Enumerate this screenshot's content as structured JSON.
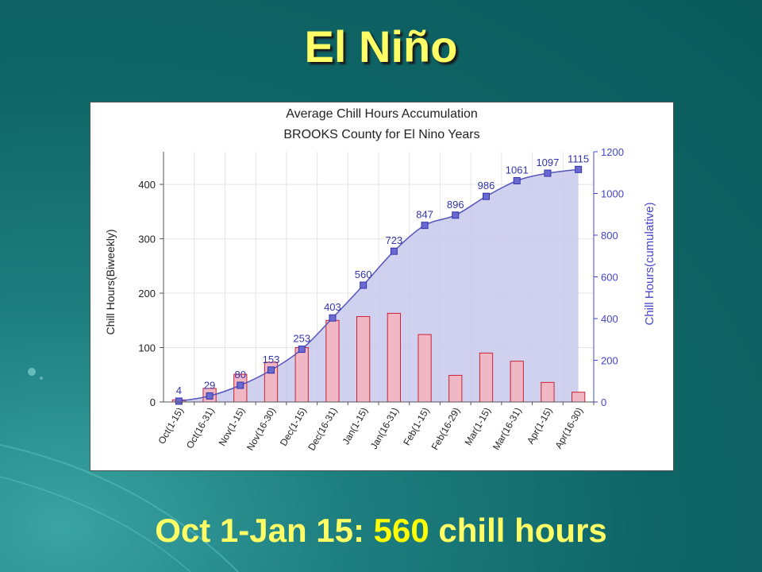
{
  "slide": {
    "title": "El Niño",
    "caption_prefix": "Oct 1-Jan 15:",
    "caption_value": "560",
    "caption_suffix": "chill hours"
  },
  "colors": {
    "background": "#0f6566",
    "title": "#ffff66",
    "bar_fill": "#f0b8c4",
    "bar_stroke": "#cc2233",
    "area_fill": "#c8c8ec",
    "line": "#5555bb",
    "marker": "#6a6ad0"
  },
  "chart_data": {
    "type": "bar",
    "title": "Average Chill Hours Accumulation",
    "subtitle": "BROOKS County for El Nino Years",
    "categories": [
      "Oct(1-15)",
      "Oct(16-31)",
      "Nov(1-15)",
      "Nov(16-30)",
      "Dec(1-15)",
      "Dec(16-31)",
      "Jan(1-15)",
      "Jan(16-31)",
      "Feb(1-15)",
      "Feb(16-29)",
      "Mar(1-15)",
      "Mar(16-31)",
      "Apr(1-15)",
      "Apr(16-30)"
    ],
    "series": [
      {
        "name": "Chill Hours(Biweekly)",
        "type": "bar",
        "axis": "left",
        "values": [
          4,
          25,
          51,
          73,
          100,
          150,
          157,
          163,
          124,
          49,
          90,
          75,
          36,
          18
        ]
      },
      {
        "name": "Chill Hours(cumulative)",
        "type": "area",
        "axis": "right",
        "values": [
          4,
          29,
          80,
          153,
          253,
          403,
          560,
          723,
          847,
          896,
          986,
          1061,
          1097,
          1115
        ],
        "data_labels": [
          "4",
          "29",
          "80",
          "153",
          "253",
          "403",
          "560",
          "723",
          "847",
          "896",
          "986",
          "1061",
          "1097",
          "1115"
        ]
      }
    ],
    "ylabel": "Chill Hours(Biweekly)",
    "y2label": "Chill Hours(cumulative)",
    "ylim": [
      0,
      460
    ],
    "y2lim": [
      0,
      1200
    ],
    "yticks": [
      0,
      100,
      200,
      300,
      400
    ],
    "y2ticks": [
      0,
      200,
      400,
      600,
      800,
      1000,
      1200
    ],
    "grid": true
  }
}
